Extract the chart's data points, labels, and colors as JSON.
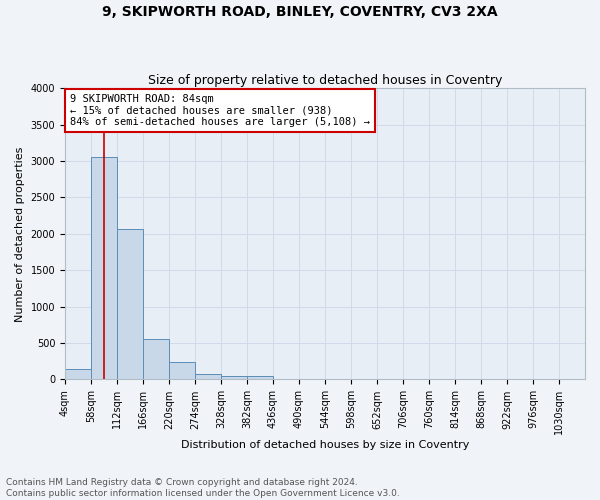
{
  "title": "9, SKIPWORTH ROAD, BINLEY, COVENTRY, CV3 2XA",
  "subtitle": "Size of property relative to detached houses in Coventry",
  "xlabel": "Distribution of detached houses by size in Coventry",
  "ylabel": "Number of detached properties",
  "bins": [
    4,
    58,
    112,
    166,
    220,
    274,
    328,
    382,
    436,
    490,
    544,
    598,
    652,
    706,
    760,
    814,
    868,
    922,
    976,
    1030,
    1084
  ],
  "counts": [
    150,
    3060,
    2060,
    560,
    235,
    75,
    50,
    50,
    0,
    0,
    0,
    0,
    0,
    0,
    0,
    0,
    0,
    0,
    0,
    0
  ],
  "bar_color": "#c8d8e8",
  "bar_edge_color": "#5b8db8",
  "property_size": 84,
  "red_line_color": "#cc0000",
  "annotation_text": "9 SKIPWORTH ROAD: 84sqm\n← 15% of detached houses are smaller (938)\n84% of semi-detached houses are larger (5,108) →",
  "annotation_box_color": "#ffffff",
  "annotation_box_edge_color": "#cc0000",
  "ylim": [
    0,
    4000
  ],
  "yticks": [
    0,
    500,
    1000,
    1500,
    2000,
    2500,
    3000,
    3500,
    4000
  ],
  "grid_color": "#d0dae8",
  "bg_color": "#e8eef6",
  "fig_bg_color": "#f0f4f8",
  "footer_text": "Contains HM Land Registry data © Crown copyright and database right 2024.\nContains public sector information licensed under the Open Government Licence v3.0.",
  "title_fontsize": 10,
  "subtitle_fontsize": 9,
  "axis_label_fontsize": 8,
  "tick_fontsize": 7,
  "annotation_fontsize": 7.5,
  "footer_fontsize": 6.5
}
